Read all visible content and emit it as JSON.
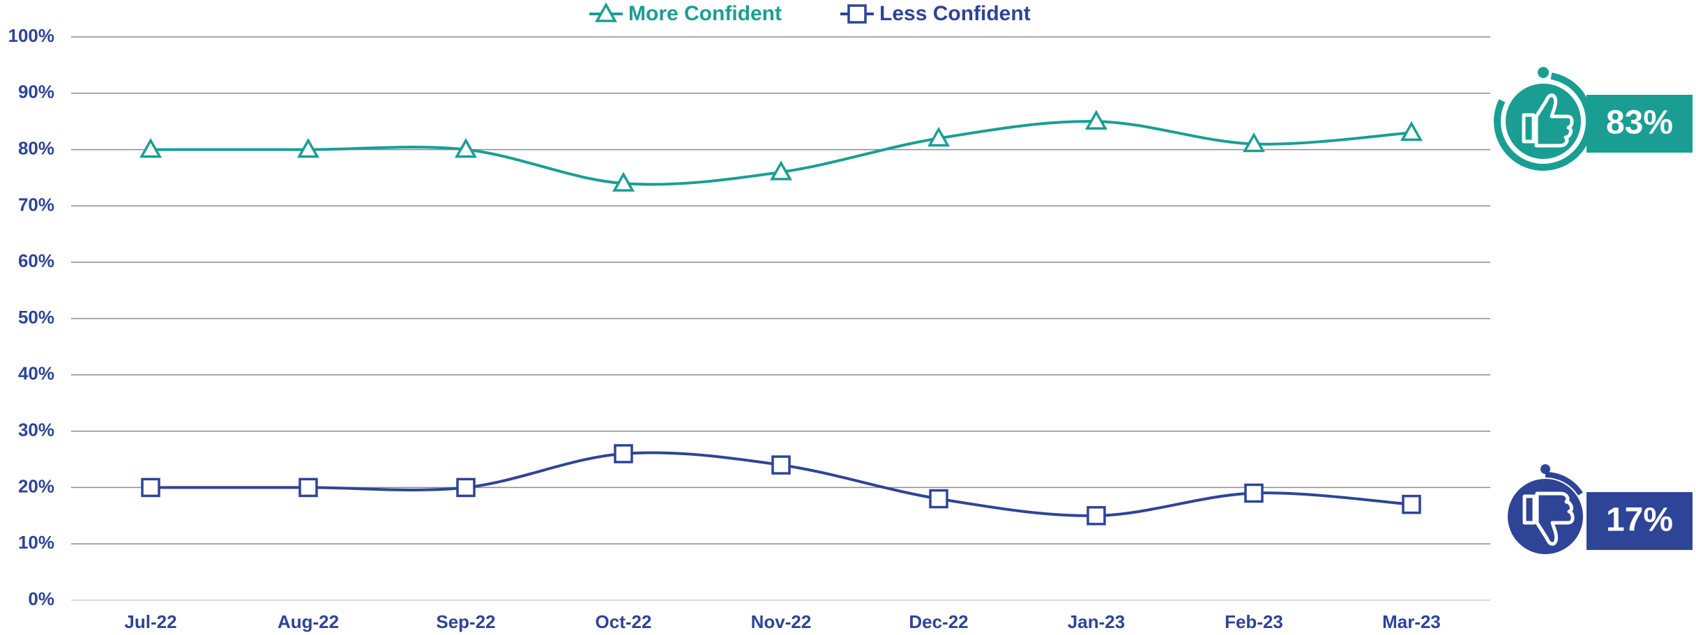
{
  "chart_data": {
    "type": "line",
    "categories": [
      "Jul-22",
      "Aug-22",
      "Sep-22",
      "Oct-22",
      "Nov-22",
      "Dec-22",
      "Jan-23",
      "Feb-23",
      "Mar-23"
    ],
    "series": [
      {
        "name": "More Confident",
        "color": "#1a9e94",
        "marker": "triangle",
        "values": [
          80,
          80,
          80,
          74,
          76,
          82,
          85,
          81,
          83
        ]
      },
      {
        "name": "Less Confident",
        "color": "#2e4496",
        "marker": "square",
        "values": [
          20,
          20,
          20,
          26,
          24,
          18,
          15,
          19,
          17
        ]
      }
    ],
    "ylim": [
      0,
      100
    ],
    "yticks": [
      {
        "value": 0,
        "label": "0%"
      },
      {
        "value": 10,
        "label": "10%"
      },
      {
        "value": 20,
        "label": "20%"
      },
      {
        "value": 30,
        "label": "30%"
      },
      {
        "value": 40,
        "label": "40%"
      },
      {
        "value": 50,
        "label": "50%"
      },
      {
        "value": 60,
        "label": "60%"
      },
      {
        "value": 70,
        "label": "70%"
      },
      {
        "value": 80,
        "label": "80%"
      },
      {
        "value": 90,
        "label": "90%"
      },
      {
        "value": 100,
        "label": "100%"
      }
    ],
    "grid": true,
    "smooth": true,
    "legend": "top",
    "annotations": [
      "83%",
      "17%"
    ]
  }
}
